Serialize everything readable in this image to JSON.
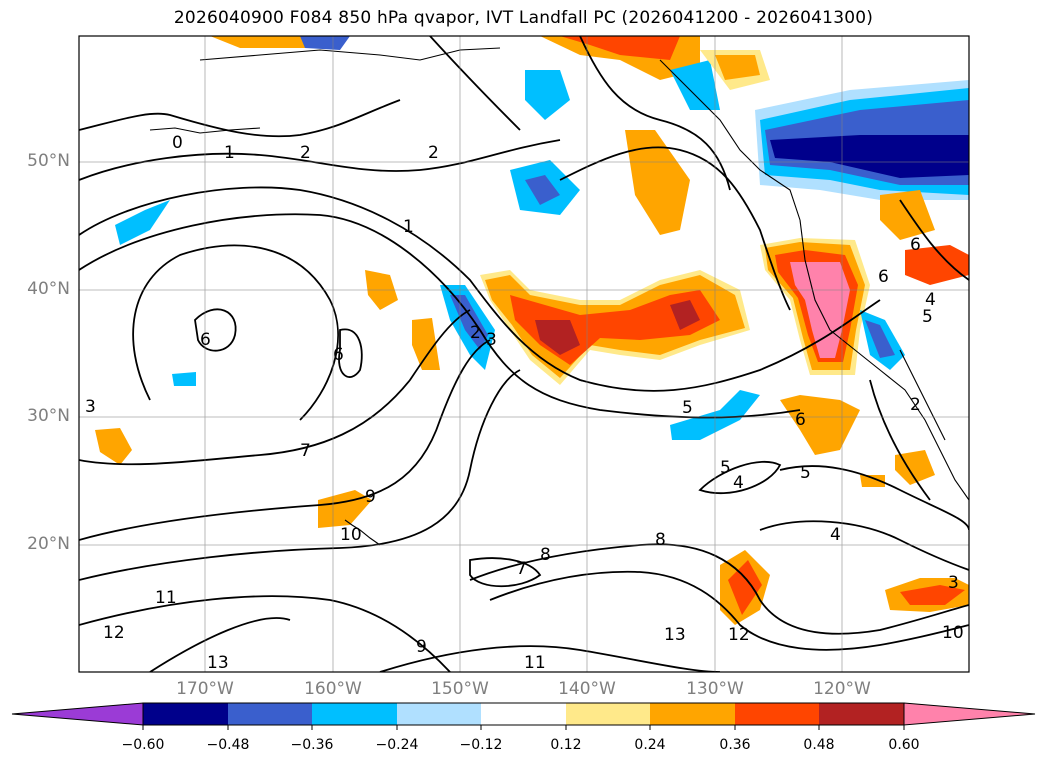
{
  "title": "2026040900 F084 850 hPa qvapor, IVT Landfall PC (2026041200 - 2026041300)",
  "lat_labels": [
    "50°N",
    "40°N",
    "30°N",
    "20°N"
  ],
  "lon_labels": [
    "170°W",
    "160°W",
    "150°W",
    "140°W",
    "130°W",
    "120°W"
  ],
  "contour_labels": [
    "0",
    "1",
    "2",
    "2",
    "1",
    "6",
    "6",
    "3",
    "7",
    "9",
    "10",
    "11",
    "12",
    "13",
    "9",
    "11",
    "7",
    "8",
    "8",
    "13",
    "12",
    "10",
    "5",
    "5",
    "4",
    "5",
    "6",
    "6",
    "4",
    "6",
    "5",
    "4",
    "3",
    "2",
    "2",
    "3"
  ],
  "colorbar": {
    "ticks": [
      "−0.60",
      "−0.48",
      "−0.36",
      "−0.24",
      "−0.12",
      "0.12",
      "0.24",
      "0.36",
      "0.48",
      "0.60"
    ],
    "colors": [
      "#9b3bd6",
      "#00008b",
      "#3a5fcd",
      "#00bfff",
      "#b0e0ff",
      "#ffffff",
      "#ffe98a",
      "#ffa500",
      "#ff4500",
      "#b22222",
      "#ff82ab",
      "#ff82ab"
    ]
  },
  "colors": {
    "dark_blue": "#00008b",
    "blue": "#3a5fcd",
    "cyan": "#00bfff",
    "light_blue": "#b0e0ff",
    "yellow": "#ffe98a",
    "orange": "#ffa500",
    "red_orange": "#ff4500",
    "dark_red": "#b22222",
    "pink": "#ff82ab"
  }
}
